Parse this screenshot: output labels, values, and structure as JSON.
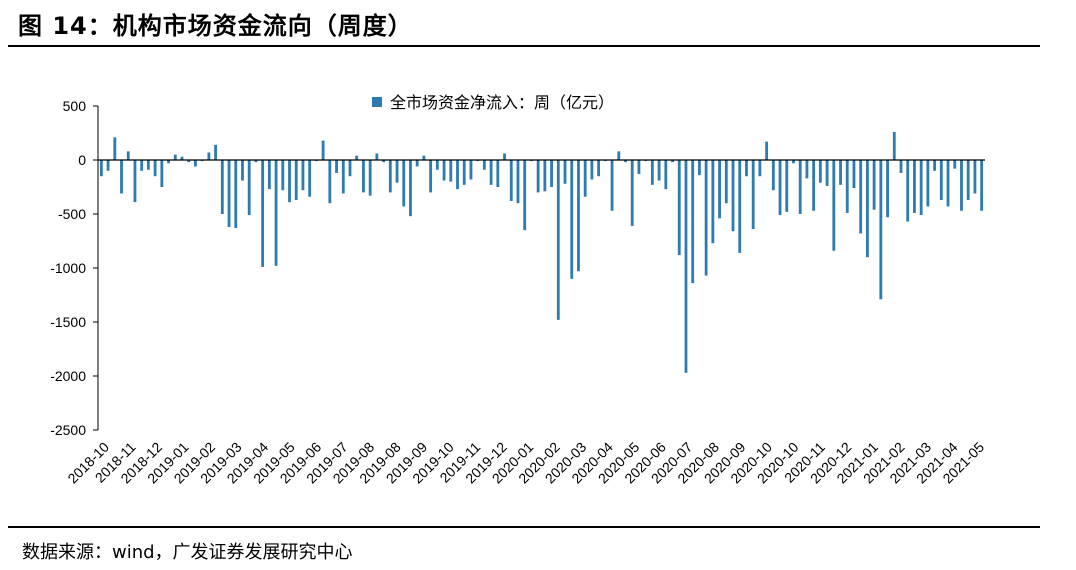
{
  "title": "图 14：机构市场资金流向（周度）",
  "source": "数据来源：wind，广发证券发展研究中心",
  "colors": {
    "bar": "#2e7bb0",
    "axis": "#000000"
  },
  "chart_data": {
    "type": "bar",
    "title": "",
    "xlabel": "",
    "ylabel": "",
    "ylim": [
      -2500,
      500
    ],
    "yticks": [
      500,
      0,
      -500,
      -1000,
      -1500,
      -2000,
      -2500
    ],
    "legend": {
      "label": "全市场资金净流入：周（亿元）",
      "position": "top-center"
    },
    "month_labels": [
      "2018-10",
      "2018-11",
      "2018-12",
      "2019-01",
      "2019-02",
      "2019-03",
      "2019-04",
      "2019-05",
      "2019-06",
      "2019-07",
      "2019-08",
      "2019-08",
      "2019-09",
      "2019-10",
      "2019-11",
      "2019-12",
      "2020-01",
      "2020-02",
      "2020-03",
      "2020-04",
      "2020-05",
      "2020-06",
      "2020-07",
      "2020-08",
      "2020-09",
      "2020-10",
      "2020-10",
      "2020-11",
      "2020-12",
      "2021-01",
      "2021-02",
      "2021-03",
      "2021-04",
      "2021-05"
    ],
    "series": [
      {
        "name": "全市场资金净流入：周（亿元）",
        "values": [
          -150,
          -100,
          210,
          -310,
          80,
          -390,
          -100,
          -90,
          -150,
          -250,
          -30,
          50,
          30,
          -20,
          -60,
          -10,
          70,
          140,
          -500,
          -620,
          -630,
          -190,
          -510,
          -20,
          -990,
          -270,
          -980,
          -280,
          -390,
          -370,
          -280,
          -340,
          -10,
          180,
          -400,
          -120,
          -310,
          -150,
          40,
          -300,
          -330,
          60,
          -20,
          -300,
          -210,
          -430,
          -520,
          -60,
          40,
          -300,
          -90,
          -190,
          -200,
          -270,
          -230,
          -180,
          -10,
          -90,
          -230,
          -250,
          60,
          -380,
          -400,
          -650,
          -10,
          -300,
          -290,
          -250,
          -1480,
          -220,
          -1100,
          -1030,
          -340,
          -180,
          -150,
          -10,
          -470,
          80,
          -20,
          -610,
          -130,
          -10,
          -230,
          -190,
          -270,
          -20,
          -880,
          -1970,
          -1140,
          -140,
          -1070,
          -770,
          -540,
          -400,
          -660,
          -860,
          -150,
          -640,
          -150,
          170,
          -280,
          -510,
          -480,
          -30,
          -500,
          -170,
          -470,
          -210,
          -240,
          -840,
          -230,
          -490,
          -260,
          -680,
          -900,
          -460,
          -1290,
          -530,
          260,
          -120,
          -570,
          -490,
          -510,
          -430,
          -100,
          -370,
          -430,
          -80,
          -470,
          -370,
          -310,
          -470
        ]
      }
    ]
  }
}
